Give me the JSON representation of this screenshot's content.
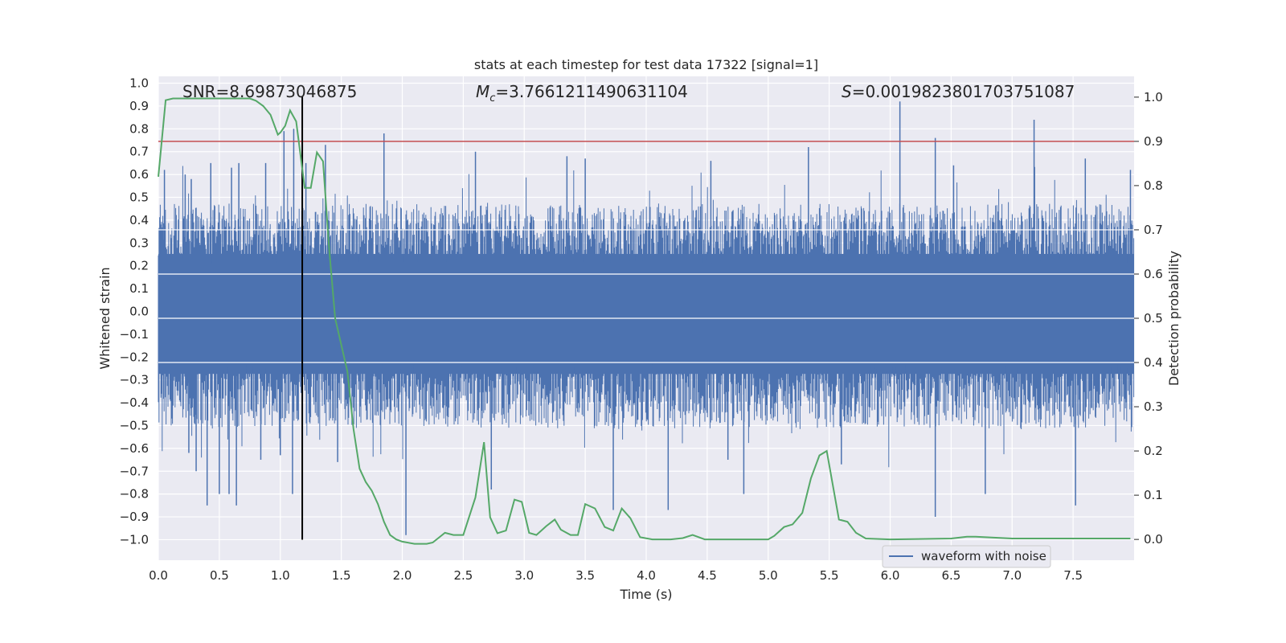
{
  "chart_data": {
    "type": "line",
    "title": "stats at each timestep for test data 17322 [signal=1]",
    "xlabel": "Time (s)",
    "ylabel": "Whitened strain",
    "y2label": "Detection probability",
    "xlim": [
      0.0,
      8.0
    ],
    "ylim": [
      -1.09,
      1.03
    ],
    "y2lim": [
      -0.047,
      1.047
    ],
    "xticks": [
      "0.0",
      "0.5",
      "1.0",
      "1.5",
      "2.0",
      "2.5",
      "3.0",
      "3.5",
      "4.0",
      "4.5",
      "5.0",
      "5.5",
      "6.0",
      "6.5",
      "7.0",
      "7.5"
    ],
    "yticks": [
      "1.0",
      "0.9",
      "0.8",
      "0.7",
      "0.6",
      "0.5",
      "0.4",
      "0.3",
      "0.2",
      "0.1",
      "0.0",
      "−0.1",
      "−0.2",
      "−0.3",
      "−0.4",
      "−0.5",
      "−0.6",
      "−0.7",
      "−0.8",
      "−0.9",
      "−1.0"
    ],
    "y2ticks": [
      "1.0",
      "0.9",
      "0.8",
      "0.7",
      "0.6",
      "0.5",
      "0.4",
      "0.3",
      "0.2",
      "0.1",
      "0.0"
    ],
    "grid": true,
    "legend_position": "lower right",
    "annotations": {
      "snr": "SNR=8.69873046875",
      "mc_symbol": "M",
      "mc_subscript": "c",
      "mc_value": "=3.7661211490631104",
      "s_symbol": "S",
      "s_value": "=0.0019823801703751087"
    },
    "threshold": 0.9,
    "marker_time": 1.18,
    "marker_range": [
      -1.0,
      0.94
    ],
    "series": [
      {
        "name": "waveform with noise",
        "color": "#4c72b0",
        "axis": "left",
        "envelope_base": [
          0.35,
          -0.38
        ],
        "spikes": [
          {
            "x": 0.05,
            "y": 0.62
          },
          {
            "x": 0.22,
            "y": 0.6
          },
          {
            "x": 0.25,
            "y": -0.62
          },
          {
            "x": 0.27,
            "y": 0.58
          },
          {
            "x": 0.31,
            "y": -0.7
          },
          {
            "x": 0.4,
            "y": -0.85
          },
          {
            "x": 0.43,
            "y": 0.65
          },
          {
            "x": 0.5,
            "y": -0.8
          },
          {
            "x": 0.58,
            "y": -0.8
          },
          {
            "x": 0.6,
            "y": 0.63
          },
          {
            "x": 0.64,
            "y": -0.85
          },
          {
            "x": 0.66,
            "y": 0.65
          },
          {
            "x": 0.84,
            "y": -0.65
          },
          {
            "x": 0.88,
            "y": 0.65
          },
          {
            "x": 1.0,
            "y": -0.63
          },
          {
            "x": 1.03,
            "y": 0.79
          },
          {
            "x": 1.1,
            "y": -0.8
          },
          {
            "x": 1.11,
            "y": 0.8
          },
          {
            "x": 1.21,
            "y": 0.65
          },
          {
            "x": 1.37,
            "y": 0.73
          },
          {
            "x": 1.47,
            "y": -0.66
          },
          {
            "x": 1.85,
            "y": 0.78
          },
          {
            "x": 2.03,
            "y": -0.98
          },
          {
            "x": 2.6,
            "y": 0.7
          },
          {
            "x": 2.73,
            "y": -0.78
          },
          {
            "x": 3.35,
            "y": 0.68
          },
          {
            "x": 3.5,
            "y": 0.67
          },
          {
            "x": 3.73,
            "y": -0.87
          },
          {
            "x": 4.18,
            "y": -0.87
          },
          {
            "x": 4.53,
            "y": 0.66
          },
          {
            "x": 4.67,
            "y": -0.65
          },
          {
            "x": 4.8,
            "y": -0.8
          },
          {
            "x": 5.33,
            "y": 0.72
          },
          {
            "x": 5.6,
            "y": -0.67
          },
          {
            "x": 6.08,
            "y": 0.92
          },
          {
            "x": 6.37,
            "y": -0.9
          },
          {
            "x": 6.37,
            "y": 0.76
          },
          {
            "x": 6.52,
            "y": 0.64
          },
          {
            "x": 6.78,
            "y": -0.8
          },
          {
            "x": 7.18,
            "y": 0.84
          },
          {
            "x": 7.52,
            "y": -0.85
          },
          {
            "x": 7.6,
            "y": 0.67
          },
          {
            "x": 7.97,
            "y": 0.62
          }
        ]
      },
      {
        "name": "Detection probability",
        "color": "#55a868",
        "axis": "right",
        "x": [
          0.0,
          0.06,
          0.12,
          0.25,
          0.5,
          0.75,
          0.8,
          0.86,
          0.92,
          0.98,
          1.0,
          1.04,
          1.08,
          1.13,
          1.2,
          1.25,
          1.3,
          1.35,
          1.4,
          1.45,
          1.55,
          1.6,
          1.65,
          1.7,
          1.75,
          1.8,
          1.85,
          1.9,
          1.95,
          2.0,
          2.1,
          2.2,
          2.25,
          2.35,
          2.42,
          2.5,
          2.6,
          2.67,
          2.72,
          2.78,
          2.85,
          2.92,
          2.98,
          3.04,
          3.1,
          3.18,
          3.25,
          3.3,
          3.38,
          3.44,
          3.5,
          3.58,
          3.66,
          3.73,
          3.8,
          3.87,
          3.95,
          4.05,
          4.2,
          4.3,
          4.38,
          4.48,
          4.7,
          5.0,
          5.05,
          5.13,
          5.2,
          5.28,
          5.35,
          5.42,
          5.48,
          5.58,
          5.65,
          5.72,
          5.8,
          6.0,
          6.5,
          6.63,
          6.7,
          7.0,
          7.2,
          7.5,
          7.97
        ],
        "y": [
          0.82,
          0.993,
          0.997,
          0.997,
          0.997,
          0.997,
          0.992,
          0.98,
          0.96,
          0.915,
          0.92,
          0.935,
          0.97,
          0.945,
          0.795,
          0.795,
          0.875,
          0.855,
          0.66,
          0.5,
          0.38,
          0.25,
          0.16,
          0.13,
          0.11,
          0.08,
          0.04,
          0.01,
          0.0,
          -0.005,
          -0.01,
          -0.01,
          -0.007,
          0.015,
          0.01,
          0.01,
          0.095,
          0.22,
          0.05,
          0.014,
          0.02,
          0.09,
          0.085,
          0.015,
          0.01,
          0.03,
          0.045,
          0.022,
          0.01,
          0.01,
          0.08,
          0.07,
          0.028,
          0.02,
          0.07,
          0.048,
          0.005,
          0.0,
          0.0,
          0.003,
          0.01,
          0.0,
          0.0,
          0.0,
          0.008,
          0.028,
          0.034,
          0.06,
          0.138,
          0.19,
          0.2,
          0.045,
          0.04,
          0.015,
          0.002,
          0.0,
          0.002,
          0.006,
          0.006,
          0.002,
          0.002,
          0.002,
          0.002
        ]
      },
      {
        "name": "threshold",
        "color": "#c44e52",
        "axis": "right"
      }
    ]
  }
}
